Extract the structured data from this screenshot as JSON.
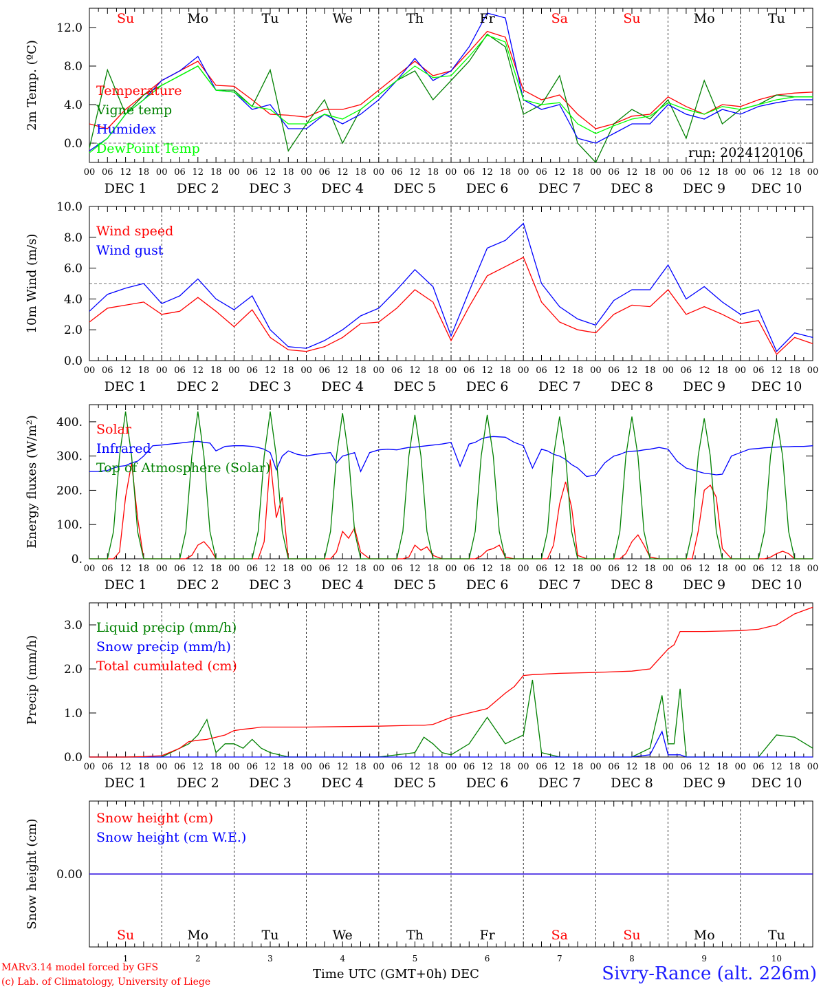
{
  "footer": {
    "credit_line1": "MARv3.14 model forced by GFS",
    "credit_line2": "(c) Lab. of Climatology, University of Liege",
    "time_axis_label": "Time UTC (GMT+0h)",
    "month_label": "DEC",
    "station": "Sivry-Rance (alt. 226m)"
  },
  "days": {
    "weekdays": [
      "Su",
      "Mo",
      "Tu",
      "We",
      "Th",
      "Fr",
      "Sa",
      "Su",
      "Mo",
      "Tu"
    ],
    "weekend_color": "#ff0000",
    "weekday_color": "#000000",
    "date_labels": [
      "DEC 1",
      "DEC 2",
      "DEC 3",
      "DEC 4",
      "DEC 5",
      "DEC 6",
      "DEC 7",
      "DEC 8",
      "DEC 9",
      "DEC 10"
    ],
    "day_numbers": [
      "1",
      "2",
      "3",
      "4",
      "5",
      "6",
      "7",
      "8",
      "9",
      "10"
    ],
    "hour_ticks": [
      "00",
      "06",
      "12",
      "18"
    ]
  },
  "chart_data": [
    {
      "type": "line",
      "ylabel": "2m Temp. (ºC)",
      "ylim": [
        -2,
        14
      ],
      "yticks": [
        "0.0",
        "4.0",
        "8.0",
        "12.0"
      ],
      "reference_line": 0,
      "annotation": "run: 2024120106",
      "x": [
        0,
        6,
        12,
        18,
        24,
        30,
        36,
        42,
        48,
        54,
        60,
        66,
        72,
        78,
        84,
        90,
        96,
        102,
        108,
        114,
        120,
        126,
        132,
        138,
        144,
        150,
        156,
        162,
        168,
        174,
        180,
        186,
        192,
        198,
        204,
        210,
        216,
        222,
        228,
        234,
        240
      ],
      "series": [
        {
          "name": "Temperature",
          "color": "#ff0000",
          "values": [
            2.0,
            1.5,
            3.5,
            5.0,
            6.5,
            7.5,
            8.5,
            6.0,
            5.9,
            4.5,
            3.0,
            2.9,
            2.7,
            3.5,
            3.5,
            4.0,
            5.5,
            7.0,
            8.5,
            7.0,
            7.5,
            9.5,
            11.6,
            11.0,
            5.5,
            4.5,
            5.0,
            3.0,
            1.5,
            2.0,
            2.8,
            3.0,
            4.8,
            3.8,
            3.0,
            4.0,
            3.8,
            4.5,
            5.0,
            5.2,
            5.3
          ]
        },
        {
          "name": "Vigne temp",
          "color": "#008000",
          "values": [
            -0.5,
            7.6,
            3.0,
            5.0,
            6.0,
            7.0,
            8.0,
            5.5,
            5.5,
            3.8,
            7.6,
            -0.8,
            2.0,
            4.5,
            0.0,
            3.5,
            5.0,
            6.5,
            7.5,
            4.5,
            6.5,
            8.5,
            11.3,
            10.0,
            3.0,
            4.0,
            7.0,
            0.0,
            -2.0,
            2.0,
            3.5,
            2.5,
            4.5,
            0.5,
            6.5,
            2.0,
            3.5,
            4.0,
            5.0,
            4.8,
            4.8
          ]
        },
        {
          "name": "Humidex",
          "color": "#0000ff",
          "values": [
            -0.8,
            0.5,
            3.0,
            4.5,
            6.5,
            7.5,
            9.0,
            5.5,
            5.3,
            3.5,
            4.0,
            1.5,
            1.5,
            3.0,
            2.0,
            3.0,
            4.5,
            6.5,
            8.8,
            6.5,
            7.5,
            10.0,
            13.5,
            13.0,
            4.5,
            3.5,
            4.0,
            0.5,
            0.0,
            1.0,
            2.0,
            2.0,
            4.0,
            3.0,
            2.5,
            3.5,
            3.0,
            3.8,
            4.2,
            4.5,
            4.5
          ]
        },
        {
          "name": "DewPoint Temp",
          "color": "#00ff00",
          "values": [
            -1.0,
            0.5,
            3.0,
            4.5,
            6.0,
            7.0,
            8.0,
            5.5,
            5.3,
            3.8,
            3.5,
            2.0,
            2.0,
            3.0,
            2.5,
            3.5,
            5.0,
            6.5,
            8.0,
            6.8,
            7.0,
            9.0,
            11.2,
            10.5,
            4.5,
            4.0,
            4.2,
            2.0,
            1.0,
            1.8,
            2.5,
            2.8,
            4.2,
            3.5,
            3.0,
            3.8,
            3.5,
            4.0,
            4.5,
            4.8,
            4.8
          ]
        }
      ]
    },
    {
      "type": "line",
      "ylabel": "10m Wind (m/s)",
      "ylim": [
        0,
        10
      ],
      "yticks": [
        "0.0",
        "2.0",
        "4.0",
        "6.0",
        "8.0",
        "10.0"
      ],
      "reference_line": 5,
      "x": [
        0,
        6,
        12,
        18,
        24,
        30,
        36,
        42,
        48,
        54,
        60,
        66,
        72,
        78,
        84,
        90,
        96,
        102,
        108,
        114,
        120,
        126,
        132,
        138,
        144,
        150,
        156,
        162,
        168,
        174,
        180,
        186,
        192,
        198,
        204,
        210,
        216,
        222,
        228,
        234,
        240
      ],
      "series": [
        {
          "name": "Wind speed",
          "color": "#ff0000",
          "values": [
            2.5,
            3.4,
            3.6,
            3.8,
            3.0,
            3.2,
            4.1,
            3.2,
            2.2,
            3.3,
            1.5,
            0.7,
            0.6,
            0.9,
            1.5,
            2.4,
            2.5,
            3.4,
            4.6,
            3.8,
            1.3,
            3.5,
            5.5,
            6.1,
            6.7,
            3.8,
            2.5,
            2.0,
            1.8,
            3.0,
            3.6,
            3.5,
            4.6,
            3.0,
            3.5,
            3.0,
            2.4,
            2.6,
            0.4,
            1.5,
            1.1
          ]
        },
        {
          "name": "Wind gust",
          "color": "#0000ff",
          "values": [
            3.2,
            4.3,
            4.7,
            5.0,
            3.7,
            4.2,
            5.3,
            4.0,
            3.3,
            4.2,
            2.0,
            0.9,
            0.8,
            1.3,
            2.0,
            2.9,
            3.4,
            4.6,
            5.9,
            4.8,
            1.6,
            4.5,
            7.3,
            7.8,
            8.9,
            5.0,
            3.5,
            2.7,
            2.3,
            3.9,
            4.6,
            4.6,
            6.2,
            4.0,
            4.8,
            3.8,
            3.0,
            3.3,
            0.6,
            1.8,
            1.5
          ]
        }
      ]
    },
    {
      "type": "line",
      "ylabel": "Energy fluxes (W/m²)",
      "ylim": [
        0,
        450
      ],
      "yticks": [
        "0.",
        "100.",
        "200.",
        "300.",
        "400."
      ],
      "x_hours": [
        0,
        3,
        6,
        8,
        10,
        12,
        14,
        16,
        18,
        21,
        24,
        27,
        30,
        32,
        34,
        36,
        38,
        40,
        42,
        45,
        48,
        51,
        54,
        56,
        58,
        60,
        62,
        64,
        66,
        69,
        72,
        75,
        78,
        80,
        82,
        84,
        86,
        88,
        90,
        93,
        96,
        99,
        102,
        104,
        106,
        108,
        110,
        112,
        114,
        117,
        120,
        123,
        126,
        128,
        130,
        132,
        134,
        136,
        138,
        141,
        144,
        147,
        150,
        152,
        154,
        156,
        158,
        160,
        162,
        165,
        168,
        171,
        174,
        176,
        178,
        180,
        182,
        184,
        186,
        189,
        192,
        195,
        198,
        200,
        202,
        204,
        206,
        208,
        210,
        213,
        216,
        219,
        222,
        224,
        226,
        228,
        230,
        232,
        234,
        237,
        240
      ],
      "series": [
        {
          "name": "Solar",
          "color": "#ff0000",
          "values": [
            0,
            0,
            0,
            0,
            20,
            180,
            280,
            120,
            0,
            0,
            0,
            0,
            0,
            0,
            10,
            40,
            50,
            30,
            0,
            0,
            0,
            0,
            0,
            0,
            50,
            290,
            120,
            180,
            0,
            0,
            0,
            0,
            0,
            0,
            20,
            80,
            60,
            90,
            20,
            0,
            0,
            0,
            0,
            0,
            5,
            40,
            25,
            35,
            10,
            0,
            0,
            0,
            0,
            0,
            8,
            25,
            30,
            40,
            5,
            0,
            0,
            0,
            0,
            0,
            40,
            160,
            225,
            150,
            10,
            0,
            0,
            0,
            0,
            0,
            15,
            50,
            70,
            40,
            5,
            0,
            0,
            0,
            0,
            0,
            80,
            200,
            215,
            180,
            30,
            0,
            0,
            0,
            0,
            0,
            5,
            15,
            22,
            15,
            0,
            0,
            0
          ]
        },
        {
          "name": "Infrared",
          "color": "#0000ff",
          "values": [
            255,
            255,
            258,
            265,
            270,
            272,
            280,
            285,
            300,
            330,
            332,
            335,
            338,
            340,
            342,
            343,
            340,
            338,
            315,
            328,
            330,
            330,
            328,
            325,
            320,
            310,
            260,
            300,
            315,
            305,
            300,
            305,
            308,
            310,
            280,
            300,
            305,
            310,
            255,
            310,
            318,
            320,
            318,
            322,
            325,
            326,
            328,
            330,
            332,
            335,
            340,
            270,
            335,
            340,
            350,
            355,
            357,
            356,
            355,
            340,
            330,
            265,
            320,
            315,
            305,
            300,
            290,
            275,
            265,
            240,
            245,
            280,
            300,
            305,
            312,
            314,
            315,
            318,
            320,
            325,
            320,
            285,
            265,
            260,
            255,
            250,
            248,
            245,
            247,
            300,
            310,
            320,
            322,
            324,
            325,
            326,
            327,
            327,
            328,
            328,
            330
          ]
        },
        {
          "name": "Top of Atmosphere (Solar)",
          "color": "#008000",
          "values": [
            0,
            0,
            0,
            80,
            300,
            430,
            300,
            80,
            0,
            0,
            0,
            0,
            0,
            80,
            300,
            430,
            300,
            80,
            0,
            0,
            0,
            0,
            0,
            80,
            300,
            430,
            300,
            80,
            0,
            0,
            0,
            0,
            0,
            80,
            300,
            425,
            300,
            80,
            0,
            0,
            0,
            0,
            0,
            80,
            300,
            420,
            300,
            80,
            0,
            0,
            0,
            0,
            0,
            80,
            300,
            420,
            300,
            80,
            0,
            0,
            0,
            0,
            0,
            80,
            300,
            415,
            300,
            80,
            0,
            0,
            0,
            0,
            0,
            80,
            300,
            415,
            300,
            80,
            0,
            0,
            0,
            0,
            0,
            80,
            300,
            410,
            300,
            80,
            0,
            0,
            0,
            0,
            0,
            80,
            300,
            410,
            300,
            80,
            0,
            0,
            0
          ]
        }
      ]
    },
    {
      "type": "line",
      "ylabel": "Precip (mm/h)",
      "ylim": [
        0,
        3.5
      ],
      "yticks": [
        "0.0",
        "1.0",
        "2.0",
        "3.0"
      ],
      "x": [
        0,
        6,
        12,
        18,
        24,
        30,
        33,
        36,
        39,
        42,
        45,
        48,
        51,
        54,
        57,
        60,
        66,
        72,
        84,
        96,
        108,
        111,
        114,
        117,
        120,
        126,
        132,
        138,
        141,
        144,
        147,
        150,
        156,
        168,
        180,
        186,
        190,
        192,
        194,
        196,
        198,
        204,
        210,
        216,
        222,
        228,
        234,
        240
      ],
      "series": [
        {
          "name": "Liquid precip (mm/h)",
          "color": "#008000",
          "values": [
            0,
            0,
            0,
            0,
            0,
            0.2,
            0.3,
            0.5,
            0.85,
            0.1,
            0.3,
            0.3,
            0.2,
            0.4,
            0.2,
            0.1,
            0,
            0,
            0,
            0,
            0.1,
            0.45,
            0.3,
            0.1,
            0.05,
            0.3,
            0.9,
            0.3,
            0.4,
            0.5,
            1.75,
            0.1,
            0,
            0,
            0,
            0.2,
            1.4,
            0.3,
            0.3,
            1.55,
            0,
            0,
            0,
            0,
            0,
            0.5,
            0.45,
            0.2
          ]
        },
        {
          "name": "Snow precip (mm/h)",
          "color": "#0000ff",
          "values": [
            0,
            0,
            0,
            0,
            0,
            0,
            0,
            0,
            0,
            0,
            0,
            0,
            0,
            0,
            0,
            0,
            0,
            0,
            0,
            0,
            0,
            0,
            0,
            0,
            0,
            0,
            0,
            0,
            0,
            0,
            0,
            0,
            0,
            0,
            0,
            0.05,
            0.58,
            0.05,
            0.05,
            0.05,
            0,
            0,
            0,
            0,
            0,
            0,
            0,
            0
          ]
        },
        {
          "name": "Total cumulated (cm)",
          "color": "#ff0000",
          "values": [
            0,
            0,
            0,
            0.01,
            0.03,
            0.2,
            0.35,
            0.38,
            0.4,
            0.45,
            0.5,
            0.6,
            0.63,
            0.65,
            0.68,
            0.68,
            0.68,
            0.68,
            0.69,
            0.7,
            0.72,
            0.72,
            0.74,
            0.82,
            0.9,
            1.0,
            1.1,
            1.45,
            1.6,
            1.85,
            1.87,
            1.88,
            1.9,
            1.92,
            1.95,
            2.0,
            2.3,
            2.45,
            2.55,
            2.85,
            2.85,
            2.85,
            2.86,
            2.87,
            2.9,
            3.0,
            3.25,
            3.4
          ]
        }
      ]
    },
    {
      "type": "line",
      "ylabel": "Snow height (cm)",
      "ylim": [
        -1,
        1
      ],
      "yticks": [
        "0.00"
      ],
      "x": [
        0,
        240
      ],
      "series": [
        {
          "name": "Snow height (cm)",
          "color": "#ff0000",
          "values": [
            0,
            0
          ]
        },
        {
          "name": "Snow height (cm W.E.)",
          "color": "#0000ff",
          "values": [
            0,
            0
          ]
        }
      ]
    }
  ]
}
